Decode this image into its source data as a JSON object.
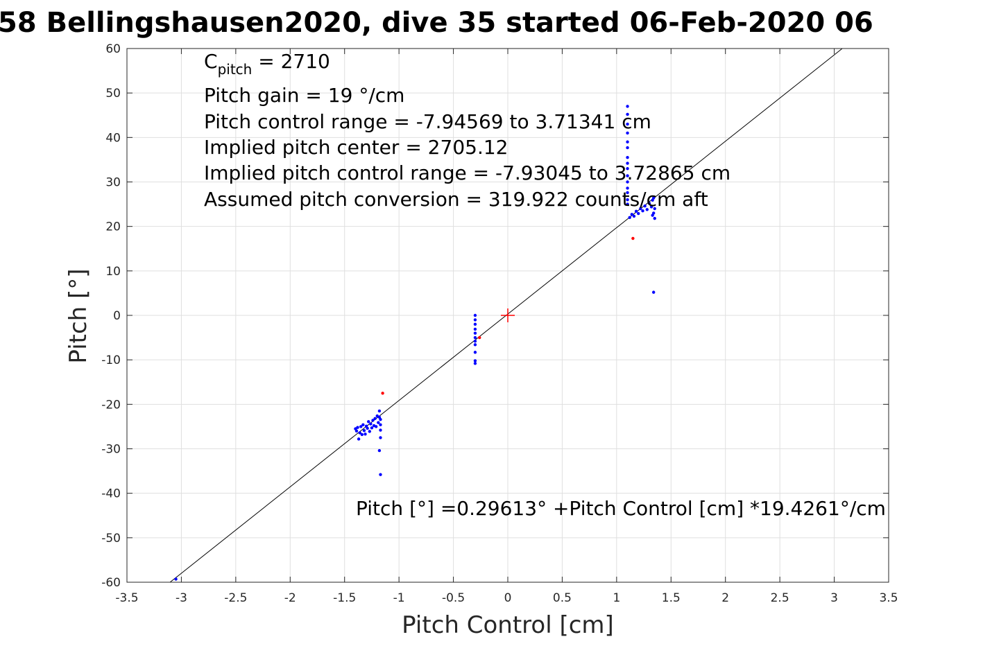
{
  "chart_data": {
    "type": "scatter",
    "title": "58 Bellingshausen2020, dive 35 started 06-Feb-2020 06",
    "xlabel": "Pitch Control [cm]",
    "ylabel": "Pitch [°]",
    "xlim": [
      -3.5,
      3.5
    ],
    "ylim": [
      -60,
      60
    ],
    "grid": true,
    "x_ticks": [
      -3.5,
      -3,
      -2.5,
      -2,
      -1.5,
      -1,
      -0.5,
      0,
      0.5,
      1,
      1.5,
      2,
      2.5,
      3,
      3.5
    ],
    "x_tick_labels": [
      "-3.5",
      "-3",
      "-2.5",
      "-2",
      "-1.5",
      "-1",
      "-0.5",
      "0",
      "0.5",
      "1",
      "1.5",
      "2",
      "2.5",
      "3",
      "3.5"
    ],
    "y_ticks": [
      -60,
      -50,
      -40,
      -30,
      -20,
      -10,
      0,
      10,
      20,
      30,
      40,
      50,
      60
    ],
    "y_tick_labels": [
      "-60",
      "-50",
      "-40",
      "-30",
      "-20",
      "-10",
      "0",
      "10",
      "20",
      "30",
      "40",
      "50",
      "60"
    ],
    "annotations": {
      "cpitch_main": "C",
      "cpitch_sub": "pitch",
      "cpitch_value": " = 2710",
      "pitch_gain": "Pitch gain = 19 °/cm",
      "control_range": "Pitch control range = -7.94569 to 3.71341 cm",
      "implied_center": "Implied pitch center = 2705.12",
      "implied_range": "Implied pitch control range = -7.93045 to 3.72865 cm",
      "conversion": "Assumed pitch conversion = 319.922 counts/cm aft",
      "fit_equation": "Pitch [°] =0.29613° +Pitch Control [cm] *19.4261°/cm"
    },
    "fit_line": {
      "intercept": 0.29613,
      "slope": 19.4261,
      "color": "#000000"
    },
    "center_marker": {
      "x": 0,
      "y": 0,
      "color": "#ff0000"
    },
    "series": [
      {
        "color": "#0000ff",
        "points": [
          [
            -3.05,
            -59.3
          ],
          [
            -1.4,
            -25.5
          ],
          [
            -1.39,
            -26.0
          ],
          [
            -1.38,
            -25.2
          ],
          [
            -1.37,
            -27.8
          ],
          [
            -1.36,
            -26.4
          ],
          [
            -1.35,
            -25.0
          ],
          [
            -1.34,
            -26.8
          ],
          [
            -1.33,
            -24.6
          ],
          [
            -1.32,
            -25.9
          ],
          [
            -1.31,
            -26.7
          ],
          [
            -1.3,
            -24.9
          ],
          [
            -1.29,
            -25.4
          ],
          [
            -1.28,
            -23.9
          ],
          [
            -1.27,
            -26.1
          ],
          [
            -1.26,
            -24.4
          ],
          [
            -1.25,
            -25.3
          ],
          [
            -1.24,
            -23.6
          ],
          [
            -1.23,
            -24.8
          ],
          [
            -1.22,
            -23.2
          ],
          [
            -1.21,
            -25.0
          ],
          [
            -1.2,
            -22.6
          ],
          [
            -1.19,
            -24.1
          ],
          [
            -1.18,
            -21.5
          ],
          [
            -1.18,
            -22.9
          ],
          [
            -1.17,
            -23.4
          ],
          [
            -1.17,
            -24.6
          ],
          [
            -1.17,
            -25.8
          ],
          [
            -1.17,
            -27.5
          ],
          [
            -1.18,
            -30.4
          ],
          [
            -1.17,
            -35.8
          ],
          [
            -0.3,
            0.0
          ],
          [
            -0.3,
            -1.0
          ],
          [
            -0.3,
            -2.0
          ],
          [
            -0.3,
            -3.1
          ],
          [
            -0.3,
            -4.0
          ],
          [
            -0.3,
            -5.0
          ],
          [
            -0.3,
            -5.8
          ],
          [
            -0.3,
            -6.6
          ],
          [
            -0.3,
            -8.3
          ],
          [
            -0.3,
            -10.2
          ],
          [
            -0.3,
            -10.8
          ],
          [
            1.1,
            47.0
          ],
          [
            1.1,
            45.2
          ],
          [
            1.1,
            43.0
          ],
          [
            1.1,
            41.0
          ],
          [
            1.1,
            39.0
          ],
          [
            1.1,
            37.7
          ],
          [
            1.1,
            35.5
          ],
          [
            1.1,
            34.2
          ],
          [
            1.1,
            33.0
          ],
          [
            1.1,
            31.4
          ],
          [
            1.1,
            30.0
          ],
          [
            1.1,
            28.6
          ],
          [
            1.1,
            27.6
          ],
          [
            1.1,
            26.0
          ],
          [
            1.1,
            25.0
          ],
          [
            1.12,
            22.0
          ],
          [
            1.14,
            22.7
          ],
          [
            1.16,
            22.3
          ],
          [
            1.18,
            23.4
          ],
          [
            1.2,
            22.9
          ],
          [
            1.22,
            24.0
          ],
          [
            1.24,
            23.5
          ],
          [
            1.26,
            24.6
          ],
          [
            1.28,
            23.8
          ],
          [
            1.3,
            25.2
          ],
          [
            1.32,
            24.4
          ],
          [
            1.33,
            22.5
          ],
          [
            1.33,
            25.9
          ],
          [
            1.34,
            23.0
          ],
          [
            1.34,
            26.4
          ],
          [
            1.35,
            24.0
          ],
          [
            1.35,
            21.8
          ],
          [
            1.34,
            5.2
          ]
        ]
      },
      {
        "color": "#ff0000",
        "points": [
          [
            -1.15,
            -17.5
          ],
          [
            -0.26,
            -5.0
          ],
          [
            1.15,
            17.3
          ]
        ]
      }
    ]
  }
}
